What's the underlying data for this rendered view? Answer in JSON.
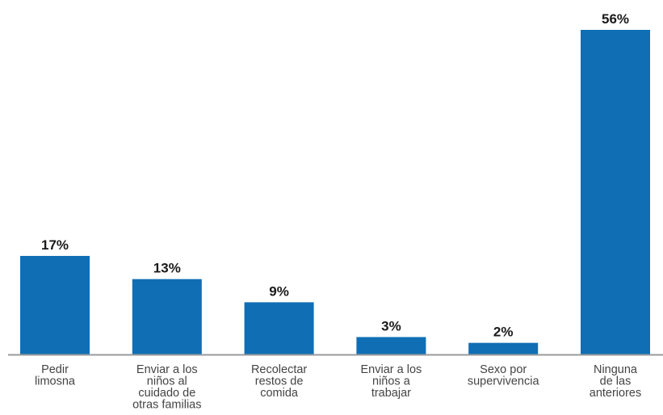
{
  "chart_data": {
    "type": "bar",
    "title": "",
    "xlabel": "",
    "ylabel": "",
    "ylim": [
      0,
      56
    ],
    "grid": false,
    "legend": "none",
    "categories": [
      [
        "Pedir",
        "limosna"
      ],
      [
        "Enviar a los",
        "niños al",
        "cuidado de",
        "otras familias"
      ],
      [
        "Recolectar",
        "restos de",
        "comida"
      ],
      [
        "Enviar a los",
        "niños a",
        "trabajar"
      ],
      [
        "Sexo por",
        "supervivencia"
      ],
      [
        "Ninguna",
        "de las",
        "anteriores"
      ]
    ],
    "values": [
      17,
      13,
      9,
      3,
      2,
      56
    ],
    "value_labels": [
      "17%",
      "13%",
      "9%",
      "3%",
      "2%",
      "56%"
    ]
  },
  "colors": {
    "bar": "#106eb4",
    "axis": "#9a9a9a"
  }
}
